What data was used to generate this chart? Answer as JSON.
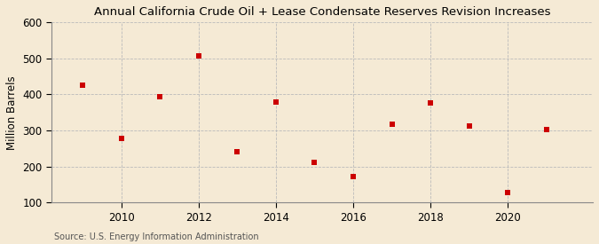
{
  "title": "Annual California Crude Oil + Lease Condensate Reserves Revision Increases",
  "ylabel": "Million Barrels",
  "source": "Source: U.S. Energy Information Administration",
  "years": [
    2009,
    2010,
    2011,
    2012,
    2013,
    2014,
    2015,
    2016,
    2017,
    2018,
    2019,
    2020,
    2021
  ],
  "values": [
    425,
    278,
    393,
    507,
    240,
    380,
    212,
    173,
    318,
    377,
    312,
    128,
    303
  ],
  "xlim": [
    2008.2,
    2022.2
  ],
  "ylim": [
    100,
    600
  ],
  "yticks": [
    100,
    200,
    300,
    400,
    500,
    600
  ],
  "xticks": [
    2010,
    2012,
    2014,
    2016,
    2018,
    2020
  ],
  "bg_color": "#f5ead5",
  "marker_color": "#cc0000",
  "marker": "s",
  "marker_size": 18,
  "grid_color": "#bbbbbb",
  "title_fontsize": 9.5,
  "axis_fontsize": 8.5,
  "source_fontsize": 7.0,
  "tick_fontsize": 8.5
}
